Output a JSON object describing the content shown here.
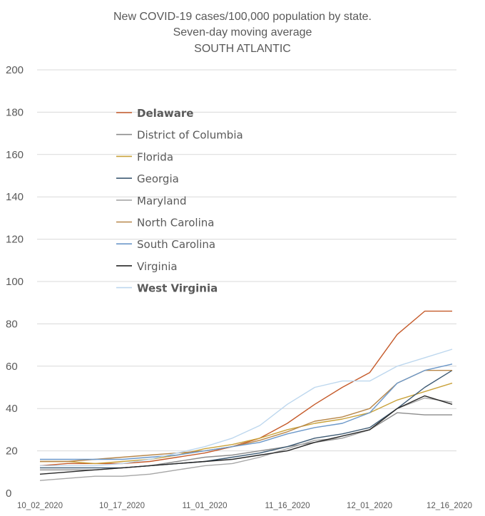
{
  "chart_data": {
    "type": "line",
    "title": "New COVID-19 cases/100,000 population by state.",
    "subtitle": "Seven-day moving average",
    "subtitle2": "SOUTH ATLANTIC",
    "xlabel": "",
    "ylabel": "",
    "ylim": [
      0,
      200
    ],
    "yticks": [
      "0",
      "20",
      "40",
      "60",
      "80",
      "100",
      "120",
      "140",
      "160",
      "180",
      "200"
    ],
    "xticks": [
      "10_02_2020",
      "10_17_2020",
      "11_01_2020",
      "11_16_2020",
      "12_01_2020",
      "12_16_2020"
    ],
    "grid": true,
    "legend_position": "upper-left",
    "x_dates": [
      "10_02_2020",
      "10_07_2020",
      "10_12_2020",
      "10_17_2020",
      "10_22_2020",
      "10_27_2020",
      "11_01_2020",
      "11_06_2020",
      "11_11_2020",
      "11_16_2020",
      "11_21_2020",
      "11_26_2020",
      "12_01_2020",
      "12_06_2020",
      "12_11_2020",
      "12_16_2020"
    ],
    "series": [
      {
        "name": "Delaware",
        "color": "#c55a2a",
        "bold": true,
        "values": [
          13,
          14,
          14,
          14,
          15,
          17,
          19,
          22,
          26,
          33,
          42,
          50,
          57,
          75,
          86,
          86
        ]
      },
      {
        "name": "District of Columbia",
        "color": "#8c8c8c",
        "bold": false,
        "values": [
          11,
          11,
          11,
          12,
          13,
          15,
          17,
          18,
          20,
          22,
          24,
          26,
          30,
          38,
          37,
          37
        ]
      },
      {
        "name": "Florida",
        "color": "#c9a23a",
        "bold": false,
        "values": [
          15,
          15,
          14,
          15,
          16,
          18,
          21,
          23,
          26,
          30,
          33,
          35,
          38,
          44,
          48,
          52
        ]
      },
      {
        "name": "Georgia",
        "color": "#3d5a73",
        "bold": false,
        "values": [
          12,
          12,
          12,
          12,
          13,
          14,
          15,
          17,
          19,
          22,
          26,
          28,
          31,
          40,
          50,
          58
        ]
      },
      {
        "name": "Maryland",
        "color": "#a6a6a6",
        "bold": false,
        "values": [
          6,
          7,
          8,
          8,
          9,
          11,
          13,
          14,
          17,
          21,
          25,
          26,
          30,
          40,
          45,
          43
        ]
      },
      {
        "name": "North Carolina",
        "color": "#b8874a",
        "bold": false,
        "values": [
          15,
          15,
          16,
          17,
          18,
          19,
          20,
          22,
          25,
          29,
          34,
          36,
          40,
          52,
          58,
          58
        ]
      },
      {
        "name": "South Carolina",
        "color": "#6c98c9",
        "bold": false,
        "values": [
          16,
          16,
          16,
          16,
          17,
          18,
          20,
          22,
          24,
          28,
          31,
          33,
          38,
          52,
          58,
          61
        ]
      },
      {
        "name": "Virginia",
        "color": "#262626",
        "bold": false,
        "values": [
          9,
          10,
          11,
          12,
          13,
          14,
          15,
          16,
          18,
          20,
          24,
          27,
          30,
          40,
          46,
          42
        ]
      },
      {
        "name": "West Virginia",
        "color": "#bdd7ee",
        "bold": true,
        "values": [
          13,
          13,
          13,
          14,
          16,
          19,
          22,
          26,
          32,
          42,
          50,
          53,
          53,
          60,
          64,
          68
        ]
      }
    ]
  }
}
